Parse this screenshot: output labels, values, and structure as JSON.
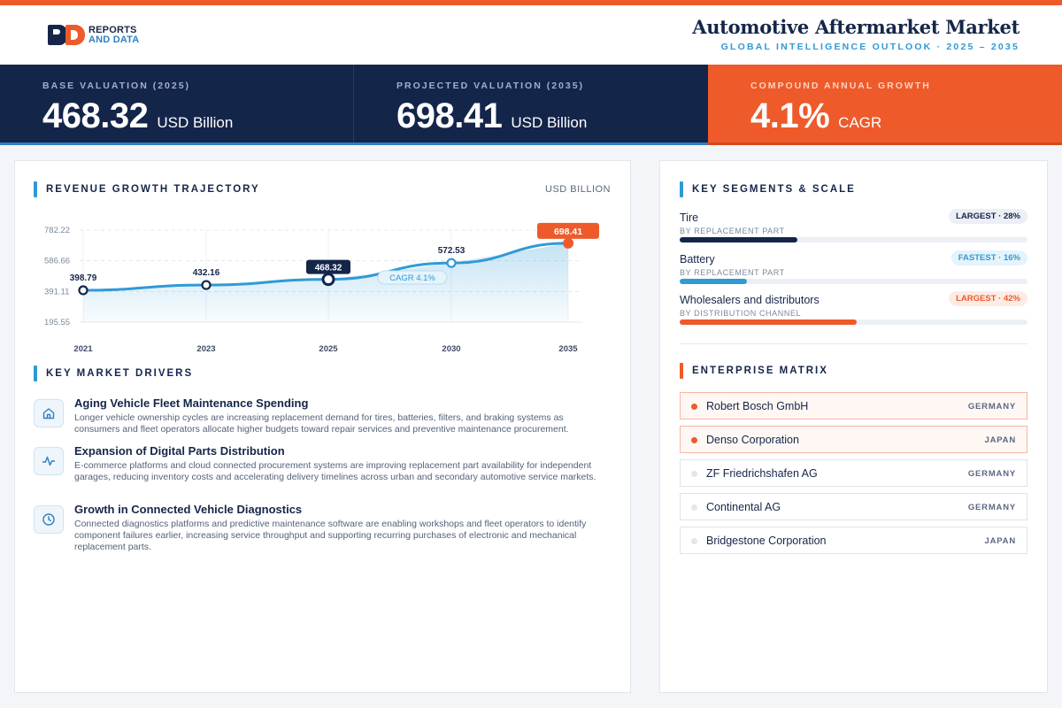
{
  "brand": {
    "logo_line1": "REPORTS",
    "logo_line2": "AND DATA"
  },
  "header": {
    "title": "Automotive Aftermarket Market",
    "subtitle": "GLOBAL INTELLIGENCE OUTLOOK  ·  2025 – 2035"
  },
  "kpis": [
    {
      "label": "BASE VALUATION (2025)",
      "value": "468.32",
      "unit": "USD Billion"
    },
    {
      "label": "PROJECTED VALUATION (2035)",
      "value": "698.41",
      "unit": "USD Billion"
    },
    {
      "label": "COMPOUND ANNUAL GROWTH",
      "value": "4.1%",
      "unit": "CAGR"
    }
  ],
  "trajectory": {
    "heading": "REVENUE GROWTH TRAJECTORY",
    "unit": "USD BILLION"
  },
  "chart_data": {
    "type": "area",
    "title": "REVENUE GROWTH TRAJECTORY",
    "ylabel": "USD BILLION",
    "x": [
      "2021",
      "2023",
      "2025",
      "2030",
      "2035"
    ],
    "values": [
      398.79,
      432.16,
      468.32,
      572.53,
      698.41
    ],
    "value_labels": [
      "398.79",
      "432.16",
      "468.32",
      "572.53",
      "698.41"
    ],
    "y_ticks": [
      "782.22",
      "586.66",
      "391.11",
      "195.55"
    ],
    "ylim": [
      195.55,
      782.22
    ],
    "highlight": {
      "base_index": 2,
      "projected_index": 4
    },
    "annotation": "CAGR 4.1%",
    "grid": true,
    "colors": {
      "line": "#2f9ad6",
      "base": "#14254a",
      "projected": "#ee5a2a"
    }
  },
  "drivers": {
    "heading": "KEY MARKET DRIVERS",
    "items": [
      {
        "icon": "home-icon",
        "title": "Aging Vehicle Fleet Maintenance Spending",
        "text": "Longer vehicle ownership cycles are increasing replacement demand for tires, batteries, filters, and braking systems as consumers and fleet operators allocate higher budgets toward repair services and preventive maintenance procurement."
      },
      {
        "icon": "pulse-icon",
        "title": "Expansion of Digital Parts Distribution",
        "text": "E-commerce platforms and cloud connected procurement systems are improving replacement part availability for independent garages, reducing inventory costs and accelerating delivery timelines across urban and secondary automotive service markets."
      },
      {
        "icon": "clock-icon",
        "title": "Growth in Connected Vehicle Diagnostics",
        "text": "Connected diagnostics platforms and predictive maintenance software are enabling workshops and fleet operators to identify component failures earlier, increasing service throughput and supporting recurring purchases of electronic and mechanical replacement parts."
      }
    ]
  },
  "segments": {
    "heading": "KEY SEGMENTS & SCALE",
    "items": [
      {
        "name": "Tire",
        "category": "BY REPLACEMENT PART",
        "badge": "LARGEST · 28%",
        "share": 0.28,
        "color": "#14254a",
        "badge_bg": "#eceff5",
        "badge_fg": "#14254a"
      },
      {
        "name": "Battery",
        "category": "BY REPLACEMENT PART",
        "badge": "FASTEST · 16%",
        "share": 0.16,
        "color": "#2f9ad6",
        "badge_bg": "#e5f3fb",
        "badge_fg": "#2f9ad6"
      },
      {
        "name": "Wholesalers and distributors",
        "category": "BY DISTRIBUTION CHANNEL",
        "badge": "LARGEST · 42%",
        "share": 0.42,
        "color": "#ee5a2a",
        "badge_bg": "#fdece5",
        "badge_fg": "#ee5a2a"
      }
    ]
  },
  "enterprise": {
    "heading": "ENTERPRISE MATRIX",
    "items": [
      {
        "name": "Robert Bosch GmbH",
        "country": "GERMANY",
        "highlight": true
      },
      {
        "name": "Denso Corporation",
        "country": "JAPAN",
        "highlight": true
      },
      {
        "name": "ZF Friedrichshafen AG",
        "country": "GERMANY",
        "highlight": false
      },
      {
        "name": "Continental AG",
        "country": "GERMANY",
        "highlight": false
      },
      {
        "name": "Bridgestone Corporation",
        "country": "JAPAN",
        "highlight": false
      }
    ]
  }
}
